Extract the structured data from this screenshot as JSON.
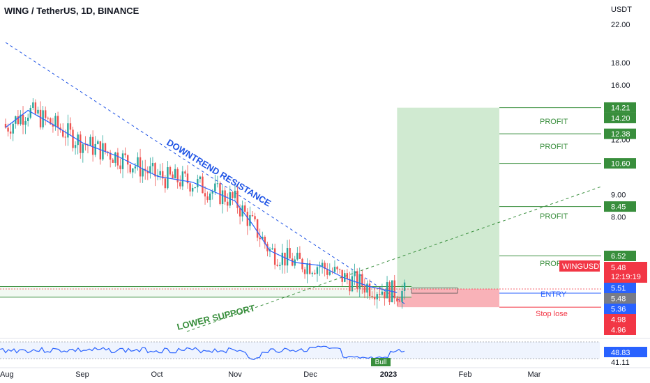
{
  "header": {
    "title": "WING / TetherUS, 1D, BINANCE",
    "currency": "USDT"
  },
  "colors": {
    "up": "#26a69a",
    "down": "#ef5350",
    "ma": "#2962ff",
    "profit_green": "#388e3c",
    "profit_zone": "#c8e6c9",
    "loss_zone": "#f8a5ab",
    "stop_red": "#f23645",
    "entry_blue": "#2962ff",
    "rsi": "#2962ff",
    "resistance": "#1e53e5",
    "support": "#388e3c"
  },
  "chart_data": {
    "type": "candlestick",
    "symbol": "WINGUSDT",
    "y_scale": "log",
    "ylim": [
      4.4,
      25
    ],
    "y_ticks": [
      "22.00",
      "18.00",
      "16.00",
      "12.00",
      "9.00",
      "8.00"
    ],
    "x_labels": [
      "Aug",
      "Sep",
      "Oct",
      "Nov",
      "Dec",
      "2023",
      "Feb",
      "Mar"
    ],
    "moving_average": [
      [
        "2022-08-01",
        12.8
      ],
      [
        "2022-08-10",
        14.0
      ],
      [
        "2022-08-20",
        13.0
      ],
      [
        "2022-09-01",
        11.8
      ],
      [
        "2022-09-15",
        11.0
      ],
      [
        "2022-10-01",
        9.9
      ],
      [
        "2022-10-15",
        9.6
      ],
      [
        "2022-11-01",
        8.7
      ],
      [
        "2022-11-08",
        7.7
      ],
      [
        "2022-11-15",
        6.7
      ],
      [
        "2022-11-25",
        6.3
      ],
      [
        "2022-12-05",
        6.2
      ],
      [
        "2022-12-15",
        5.8
      ],
      [
        "2022-12-25",
        5.55
      ],
      [
        "2023-01-05",
        5.38
      ]
    ],
    "resistance_line": [
      [
        "2022-08-01",
        20.0
      ],
      [
        "2022-12-31",
        5.4
      ]
    ],
    "support_line": [
      [
        "2022-10-20",
        3.2
      ],
      [
        "2023-03-15",
        9.8
      ]
    ],
    "support_band": [
      5.25,
      5.55
    ],
    "levels": [
      {
        "label": "14.21",
        "value": 14.21,
        "kind": "target"
      },
      {
        "label": "14.20",
        "value": 14.2,
        "kind": "target"
      },
      {
        "label": "12.38",
        "value": 12.38,
        "kind": "target"
      },
      {
        "label": "10.60",
        "value": 10.6,
        "kind": "target"
      },
      {
        "label": "8.45",
        "value": 8.45,
        "kind": "target"
      },
      {
        "label": "6.52",
        "value": 6.52,
        "kind": "target"
      },
      {
        "label": "5.51",
        "value": 5.51,
        "kind": "entry"
      },
      {
        "label": "5.48",
        "value": 5.48,
        "kind": "current"
      },
      {
        "label": "5.36",
        "value": 5.36,
        "kind": "entry"
      },
      {
        "label": "4.98",
        "value": 4.98,
        "kind": "stop"
      },
      {
        "label": "4.96",
        "value": 4.96,
        "kind": "stop"
      }
    ],
    "profit_zone": {
      "from": "2023-01-05",
      "to": "2023-02-15",
      "top": 14.2,
      "bottom": 5.48
    },
    "loss_zone": {
      "from": "2023-01-05",
      "to": "2023-02-15",
      "top": 5.48,
      "bottom": 4.98
    },
    "rsi": {
      "last": "48.83",
      "low_label": "41.11",
      "tag": "Bull"
    },
    "annotations": {
      "resistance": "DOWNTREND RESISTANCE",
      "support": "LOWER SUPPORT",
      "profit": "PROFIT",
      "entry": "ENTRY",
      "stop": "Stop lose"
    },
    "price_tag": {
      "symbol": "WINGUSDT",
      "price": "5.48",
      "countdown": "12:19:19"
    }
  }
}
